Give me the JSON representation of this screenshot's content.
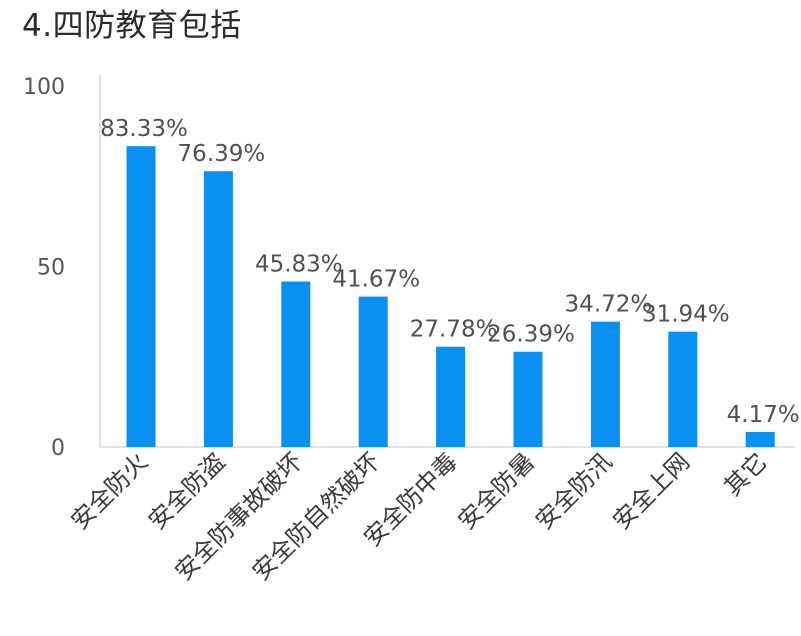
{
  "title": "4.四防教育包括",
  "chart_data": {
    "type": "bar",
    "title": "4.四防教育包括",
    "categories": [
      "安全防火",
      "安全防盗",
      "安全防事故破坏",
      "安全防自然破坏",
      "安全防中毒",
      "安全防暑",
      "安全防汛",
      "安全上网",
      "其它"
    ],
    "values": [
      83.33,
      76.39,
      45.83,
      41.67,
      27.78,
      26.39,
      34.72,
      31.94,
      4.17
    ],
    "value_labels": [
      "83.33%",
      "76.39%",
      "45.83%",
      "41.67%",
      "27.78%",
      "26.39%",
      "34.72%",
      "31.94%",
      "4.17%"
    ],
    "yticks": [
      "0",
      "50",
      "100"
    ],
    "ylim": [
      0,
      100
    ],
    "xlabel": "",
    "ylabel": "",
    "grid": false,
    "legend": "none",
    "colors": {
      "bar": "#0A90F2",
      "axis": "#d9d9d9"
    }
  }
}
